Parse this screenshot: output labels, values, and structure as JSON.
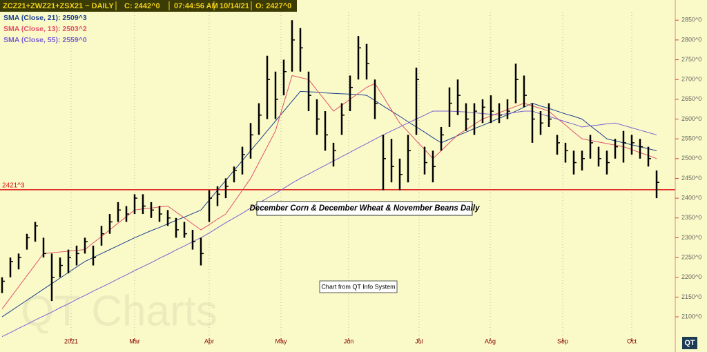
{
  "chart_data": {
    "type": "ohlc",
    "header": {
      "symbol": "ZCZ21+ZWZ21+ZSX21  ~  DAILY",
      "close": "C: 2442^0",
      "time": "07:44:56 AM",
      "date": "10/14/21",
      "open": "O: 2427^0"
    },
    "title": "December Corn & December Wheat & November Beans Daily",
    "note": "Chart from QT Info System",
    "watermark": "QT Charts",
    "logo": "QT",
    "color": "#000000",
    "ylim": [
      2046,
      2901
    ],
    "yticks": [
      {
        "value": 2100,
        "label": "2100^0"
      },
      {
        "value": 2150,
        "label": "2150^0"
      },
      {
        "value": 2200,
        "label": "2200^0"
      },
      {
        "value": 2250,
        "label": "2250^0"
      },
      {
        "value": 2300,
        "label": "2300^0"
      },
      {
        "value": 2350,
        "label": "2350^0"
      },
      {
        "value": 2400,
        "label": "2400^0"
      },
      {
        "value": 2450,
        "label": "2450^0"
      },
      {
        "value": 2500,
        "label": "2500^0"
      },
      {
        "value": 2550,
        "label": "2550^0"
      },
      {
        "value": 2600,
        "label": "2600^0"
      },
      {
        "value": 2650,
        "label": "2650^0"
      },
      {
        "value": 2700,
        "label": "2700^0"
      },
      {
        "value": 2750,
        "label": "2750^0"
      },
      {
        "value": 2800,
        "label": "2800^0"
      },
      {
        "value": 2850,
        "label": "2850^0"
      }
    ],
    "xlim": [
      -0.25,
      81.25
    ],
    "xticks": [
      {
        "value": 8.33,
        "label": "2021"
      },
      {
        "value": 16,
        "label": "Mar"
      },
      {
        "value": 25,
        "label": "Apr"
      },
      {
        "value": 33.67,
        "label": "May"
      },
      {
        "value": 41.83,
        "label": "Jun"
      },
      {
        "value": 50.33,
        "label": "Jul"
      },
      {
        "value": 58.92,
        "label": "Aug"
      },
      {
        "value": 67.67,
        "label": "Sep"
      },
      {
        "value": 76,
        "label": "Oct"
      }
    ],
    "hline": {
      "value": 2421.375,
      "label": "2421^3",
      "color": "#dd1111"
    },
    "high": [
      2200,
      2250,
      2260,
      2310,
      2340,
      2300,
      2260,
      2250,
      2270,
      2280,
      2300,
      2280,
      2330,
      2360,
      2390,
      2380,
      2410,
      2410,
      2390,
      2380,
      2370,
      2350,
      2340,
      2320,
      2300,
      2420,
      2430,
      2450,
      2480,
      2530,
      2590,
      2640,
      2760,
      2720,
      2750,
      2850,
      2830,
      2720,
      2650,
      2620,
      2540,
      2640,
      2710,
      2810,
      2790,
      2700,
      2560,
      2550,
      2500,
      2560,
      2730,
      2530,
      2520,
      2580,
      2680,
      2700,
      2640,
      2640,
      2650,
      2660,
      2640,
      2650,
      2740,
      2710,
      2640,
      2620,
      2640,
      2560,
      2540,
      2520,
      2520,
      2560,
      2530,
      2520,
      2550,
      2570,
      2560,
      2550,
      2530,
      2470
    ],
    "low": [
      2160,
      2200,
      2220,
      2270,
      2290,
      2250,
      2140,
      2200,
      2210,
      2230,
      2260,
      2230,
      2280,
      2310,
      2340,
      2340,
      2360,
      2360,
      2350,
      2340,
      2330,
      2300,
      2300,
      2270,
      2230,
      2340,
      2380,
      2400,
      2440,
      2460,
      2500,
      2560,
      2600,
      2600,
      2660,
      2720,
      2720,
      2620,
      2560,
      2520,
      2480,
      2560,
      2620,
      2700,
      2700,
      2600,
      2420,
      2440,
      2420,
      2440,
      2560,
      2460,
      2440,
      2520,
      2580,
      2610,
      2570,
      2560,
      2590,
      2590,
      2590,
      2600,
      2640,
      2630,
      2540,
      2560,
      2580,
      2510,
      2490,
      2460,
      2470,
      2500,
      2480,
      2460,
      2500,
      2490,
      2510,
      2500,
      2480,
      2400
    ],
    "close": [
      2190,
      2240,
      2250,
      2300,
      2330,
      2260,
      2200,
      2230,
      2250,
      2260,
      2290,
      2250,
      2310,
      2340,
      2370,
      2360,
      2400,
      2380,
      2370,
      2360,
      2350,
      2320,
      2310,
      2290,
      2260,
      2400,
      2410,
      2430,
      2470,
      2510,
      2560,
      2610,
      2700,
      2650,
      2720,
      2800,
      2780,
      2660,
      2600,
      2560,
      2520,
      2610,
      2680,
      2780,
      2740,
      2640,
      2500,
      2480,
      2460,
      2520,
      2700,
      2490,
      2480,
      2560,
      2640,
      2660,
      2600,
      2620,
      2630,
      2620,
      2610,
      2620,
      2700,
      2660,
      2600,
      2590,
      2600,
      2540,
      2520,
      2490,
      2500,
      2540,
      2500,
      2490,
      2530,
      2540,
      2540,
      2530,
      2500,
      2440
    ],
    "series": [
      {
        "name": "SMA (Close, 21): 2509^3",
        "color": "#1c3f8f",
        "values": [
          2100,
          2114,
          2128,
          2142,
          2156,
          2170,
          2184,
          2198,
          2212,
          2226,
          2240,
          2250,
          2260,
          2270,
          2280,
          2290,
          2300,
          2309,
          2318,
          2326,
          2335,
          2344,
          2352,
          2361,
          2370,
          2395,
          2420,
          2445,
          2470,
          2495,
          2520,
          2545,
          2570,
          2595,
          2620,
          2645,
          2670,
          2669,
          2668,
          2666,
          2665,
          2664,
          2663,
          2662,
          2660,
          2647,
          2633,
          2620,
          2607,
          2593,
          2580,
          2567,
          2553,
          2540,
          2549,
          2558,
          2567,
          2576,
          2584,
          2593,
          2602,
          2611,
          2620,
          2630,
          2640,
          2633,
          2627,
          2620,
          2613,
          2607,
          2600,
          2583,
          2567,
          2550,
          2545,
          2540,
          2535,
          2530,
          2525,
          2520
        ]
      },
      {
        "name": "SMA (Close, 13): 2503^2",
        "color": "#e2506c",
        "values": [
          2120,
          2148,
          2176,
          2204,
          2232,
          2260,
          2262,
          2264,
          2266,
          2268,
          2270,
          2287,
          2303,
          2320,
          2337,
          2353,
          2370,
          2373,
          2375,
          2378,
          2380,
          2365,
          2350,
          2335,
          2320,
          2333,
          2347,
          2360,
          2390,
          2420,
          2450,
          2490,
          2530,
          2570,
          2640,
          2710,
          2705,
          2700,
          2673,
          2647,
          2620,
          2635,
          2650,
          2665,
          2680,
          2690,
          2657,
          2623,
          2590,
          2568,
          2545,
          2523,
          2500,
          2520,
          2540,
          2560,
          2573,
          2587,
          2600,
          2608,
          2616,
          2624,
          2632,
          2640,
          2633,
          2627,
          2620,
          2602,
          2585,
          2567,
          2550,
          2546,
          2542,
          2538,
          2534,
          2530,
          2523,
          2515,
          2508,
          2500
        ]
      },
      {
        "name": "SMA (Close, 55): 2559^0",
        "color": "#7b5fd3",
        "values": [
          2050,
          2060,
          2071,
          2081,
          2092,
          2102,
          2112,
          2123,
          2133,
          2144,
          2154,
          2165,
          2175,
          2185,
          2196,
          2206,
          2217,
          2227,
          2237,
          2248,
          2258,
          2269,
          2279,
          2290,
          2300,
          2312,
          2325,
          2338,
          2350,
          2362,
          2375,
          2388,
          2400,
          2412,
          2425,
          2438,
          2450,
          2461,
          2472,
          2483,
          2494,
          2505,
          2516,
          2527,
          2538,
          2549,
          2560,
          2570,
          2580,
          2590,
          2600,
          2610,
          2620,
          2620,
          2620,
          2619,
          2618,
          2616,
          2614,
          2612,
          2610,
          2614,
          2617,
          2620,
          2620,
          2613,
          2607,
          2600,
          2593,
          2587,
          2580,
          2583,
          2585,
          2588,
          2590,
          2584,
          2578,
          2572,
          2566,
          2560
        ]
      }
    ]
  }
}
